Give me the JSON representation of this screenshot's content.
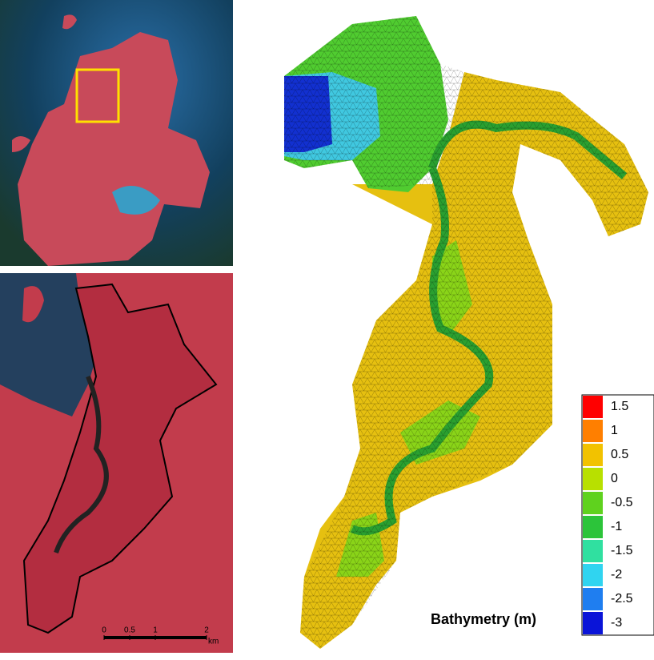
{
  "scale_bar": {
    "ticks": [
      0,
      0.5,
      1,
      2
    ],
    "unit": "km"
  },
  "legend": {
    "title": "Bathymetry (m)",
    "entries": [
      {
        "value": 1.5,
        "color": "#ff0000"
      },
      {
        "value": 1,
        "color": "#ff7f00"
      },
      {
        "value": 0.5,
        "color": "#f2c200"
      },
      {
        "value": 0,
        "color": "#b8e000"
      },
      {
        "value": -0.5,
        "color": "#5fd21e"
      },
      {
        "value": -1,
        "color": "#2cc43a"
      },
      {
        "value": -1.5,
        "color": "#30e0a0"
      },
      {
        "value": -2,
        "color": "#30d4f0"
      },
      {
        "value": -2.5,
        "color": "#1f7ef0"
      },
      {
        "value": -3,
        "color": "#0a14d8"
      }
    ]
  }
}
